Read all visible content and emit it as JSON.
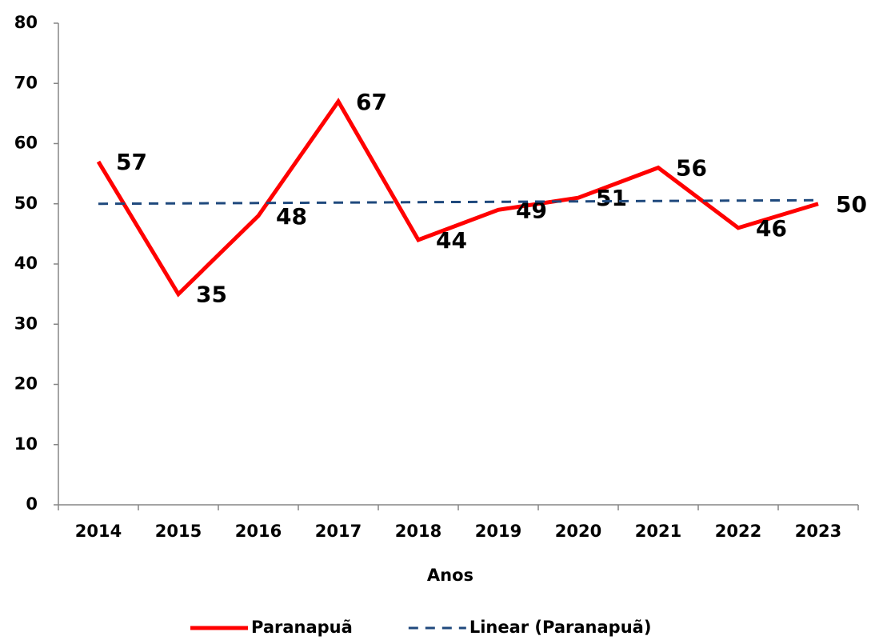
{
  "chart_data": {
    "type": "line",
    "x_label": "Anos",
    "categories": [
      "2014",
      "2015",
      "2016",
      "2017",
      "2018",
      "2019",
      "2020",
      "2021",
      "2022",
      "2023"
    ],
    "series": [
      {
        "name": "Paranapuã",
        "color": "#ff0000",
        "line_style": "solid",
        "data_labels": true,
        "values": [
          57,
          35,
          48,
          67,
          44,
          49,
          51,
          56,
          46,
          50
        ]
      },
      {
        "name": "Linear (Paranapuã)",
        "color": "#1f497d",
        "line_style": "dashed",
        "data_labels": false,
        "values": [
          50.0,
          50.07,
          50.13,
          50.2,
          50.27,
          50.33,
          50.4,
          50.47,
          50.53,
          50.6
        ]
      }
    ],
    "ylim": [
      0,
      80
    ],
    "yticks": [
      0,
      10,
      20,
      30,
      40,
      50,
      60,
      70,
      80
    ],
    "grid": false,
    "legend": "bottom"
  }
}
